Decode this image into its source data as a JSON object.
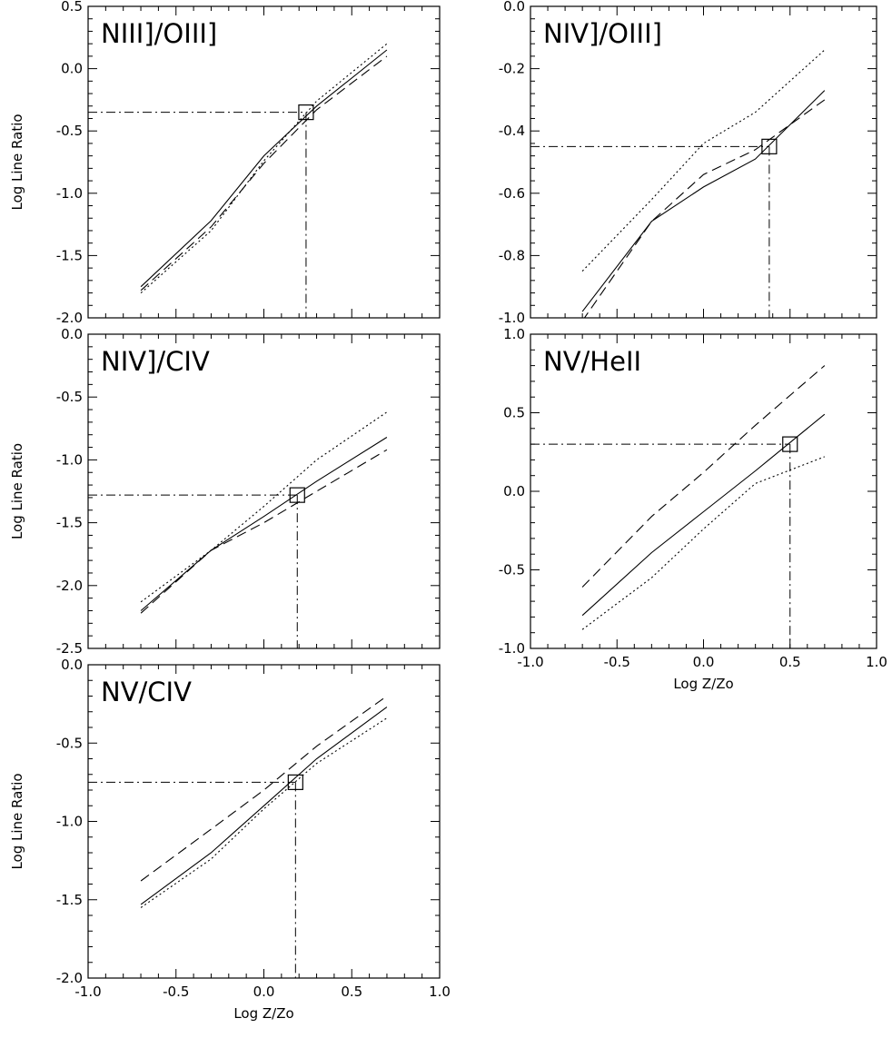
{
  "chart_data": [
    {
      "type": "line",
      "title": "NIII]/OIII]",
      "ylabel": "Log Line Ratio",
      "xlabel": "",
      "xlim": [
        -1.0,
        1.0
      ],
      "ylim": [
        -2.0,
        0.5
      ],
      "xticks": [
        "-1.0",
        "-0.5",
        "0.0",
        "0.5",
        "1.0"
      ],
      "yticks": [
        "0.5",
        "0.0",
        "-0.5",
        "-1.0",
        "-1.5",
        "-2.0"
      ],
      "series": [
        {
          "style": "solid",
          "x": [
            -0.7,
            -0.3,
            0.0,
            0.3,
            0.7
          ],
          "y": [
            -1.75,
            -1.22,
            -0.7,
            -0.3,
            0.15
          ]
        },
        {
          "style": "dashed",
          "x": [
            -0.7,
            -0.3,
            0.0,
            0.3,
            0.7
          ],
          "y": [
            -1.78,
            -1.27,
            -0.76,
            -0.33,
            0.1
          ]
        },
        {
          "style": "dotted",
          "x": [
            -0.7,
            -0.3,
            0.0,
            0.3,
            0.7
          ],
          "y": [
            -1.8,
            -1.3,
            -0.74,
            -0.26,
            0.2
          ]
        }
      ],
      "marker": {
        "x": 0.24,
        "y": -0.35
      }
    },
    {
      "type": "line",
      "title": "NIV]/OIII]",
      "ylabel": "",
      "xlabel": "",
      "xlim": [
        -1.0,
        1.0
      ],
      "ylim": [
        -1.0,
        0.0
      ],
      "xticks": [
        "-1.0",
        "-0.5",
        "0.0",
        "0.5",
        "1.0"
      ],
      "yticks": [
        "0.0",
        "-0.2",
        "-0.4",
        "-0.6",
        "-0.8",
        "-1.0"
      ],
      "series": [
        {
          "style": "solid",
          "x": [
            -0.7,
            -0.3,
            0.0,
            0.3,
            0.7
          ],
          "y": [
            -0.98,
            -0.69,
            -0.58,
            -0.49,
            -0.27
          ]
        },
        {
          "style": "dashed",
          "x": [
            -0.7,
            -0.3,
            0.0,
            0.3,
            0.7
          ],
          "y": [
            -1.01,
            -0.69,
            -0.54,
            -0.46,
            -0.3
          ]
        },
        {
          "style": "dotted",
          "x": [
            -0.7,
            -0.3,
            0.0,
            0.3,
            0.7
          ],
          "y": [
            -0.85,
            -0.62,
            -0.44,
            -0.34,
            -0.14
          ]
        }
      ],
      "marker": {
        "x": 0.38,
        "y": -0.45
      }
    },
    {
      "type": "line",
      "title": "NIV]/CIV",
      "ylabel": "Log Line Ratio",
      "xlabel": "",
      "xlim": [
        -1.0,
        1.0
      ],
      "ylim": [
        -2.5,
        0.0
      ],
      "xticks": [
        "-1.0",
        "-0.5",
        "0.0",
        "0.5",
        "1.0"
      ],
      "yticks": [
        "0.0",
        "-0.5",
        "-1.0",
        "-1.5",
        "-2.0",
        "-2.5"
      ],
      "series": [
        {
          "style": "solid",
          "x": [
            -0.7,
            -0.3,
            0.0,
            0.3,
            0.7
          ],
          "y": [
            -2.2,
            -1.72,
            -1.45,
            -1.17,
            -0.82
          ]
        },
        {
          "style": "dashed",
          "x": [
            -0.7,
            -0.3,
            0.0,
            0.3,
            0.7
          ],
          "y": [
            -2.22,
            -1.72,
            -1.5,
            -1.25,
            -0.92
          ]
        },
        {
          "style": "dotted",
          "x": [
            -0.7,
            -0.3,
            0.0,
            0.3,
            0.7
          ],
          "y": [
            -2.13,
            -1.72,
            -1.37,
            -1.0,
            -0.62
          ]
        }
      ],
      "marker": {
        "x": 0.19,
        "y": -1.28
      }
    },
    {
      "type": "line",
      "title": "NV/HeII",
      "ylabel": "",
      "xlabel": "Log Z/Zo",
      "xlim": [
        -1.0,
        1.0
      ],
      "ylim": [
        -1.0,
        1.0
      ],
      "xticks": [
        "-1.0",
        "-0.5",
        "0.0",
        "0.5",
        "1.0"
      ],
      "yticks": [
        "1.0",
        "0.5",
        "0.0",
        "-0.5",
        "-1.0"
      ],
      "series": [
        {
          "style": "solid",
          "x": [
            -0.7,
            -0.3,
            0.0,
            0.3,
            0.7
          ],
          "y": [
            -0.79,
            -0.39,
            -0.13,
            0.13,
            0.49
          ]
        },
        {
          "style": "dashed",
          "x": [
            -0.7,
            -0.3,
            0.0,
            0.3,
            0.7
          ],
          "y": [
            -0.61,
            -0.16,
            0.12,
            0.42,
            0.8
          ]
        },
        {
          "style": "dotted",
          "x": [
            -0.7,
            -0.3,
            0.0,
            0.3,
            0.7
          ],
          "y": [
            -0.88,
            -0.55,
            -0.24,
            0.05,
            0.22
          ]
        }
      ],
      "marker": {
        "x": 0.5,
        "y": 0.3
      }
    },
    {
      "type": "line",
      "title": "NV/CIV",
      "ylabel": "Log Line Ratio",
      "xlabel": "Log Z/Zo",
      "xlim": [
        -1.0,
        1.0
      ],
      "ylim": [
        -2.0,
        0.0
      ],
      "xticks": [
        "-1.0",
        "-0.5",
        "0.0",
        "0.5",
        "1.0"
      ],
      "yticks": [
        "0.0",
        "-0.5",
        "-1.0",
        "-1.5",
        "-2.0"
      ],
      "series": [
        {
          "style": "solid",
          "x": [
            -0.7,
            -0.3,
            0.0,
            0.3,
            0.7
          ],
          "y": [
            -1.53,
            -1.2,
            -0.9,
            -0.6,
            -0.27
          ]
        },
        {
          "style": "dashed",
          "x": [
            -0.7,
            -0.3,
            0.0,
            0.3,
            0.7
          ],
          "y": [
            -1.38,
            -1.05,
            -0.8,
            -0.52,
            -0.2
          ]
        },
        {
          "style": "dotted",
          "x": [
            -0.7,
            -0.3,
            0.0,
            0.3,
            0.7
          ],
          "y": [
            -1.55,
            -1.24,
            -0.92,
            -0.63,
            -0.34
          ]
        }
      ],
      "marker": {
        "x": 0.18,
        "y": -0.75
      }
    }
  ]
}
